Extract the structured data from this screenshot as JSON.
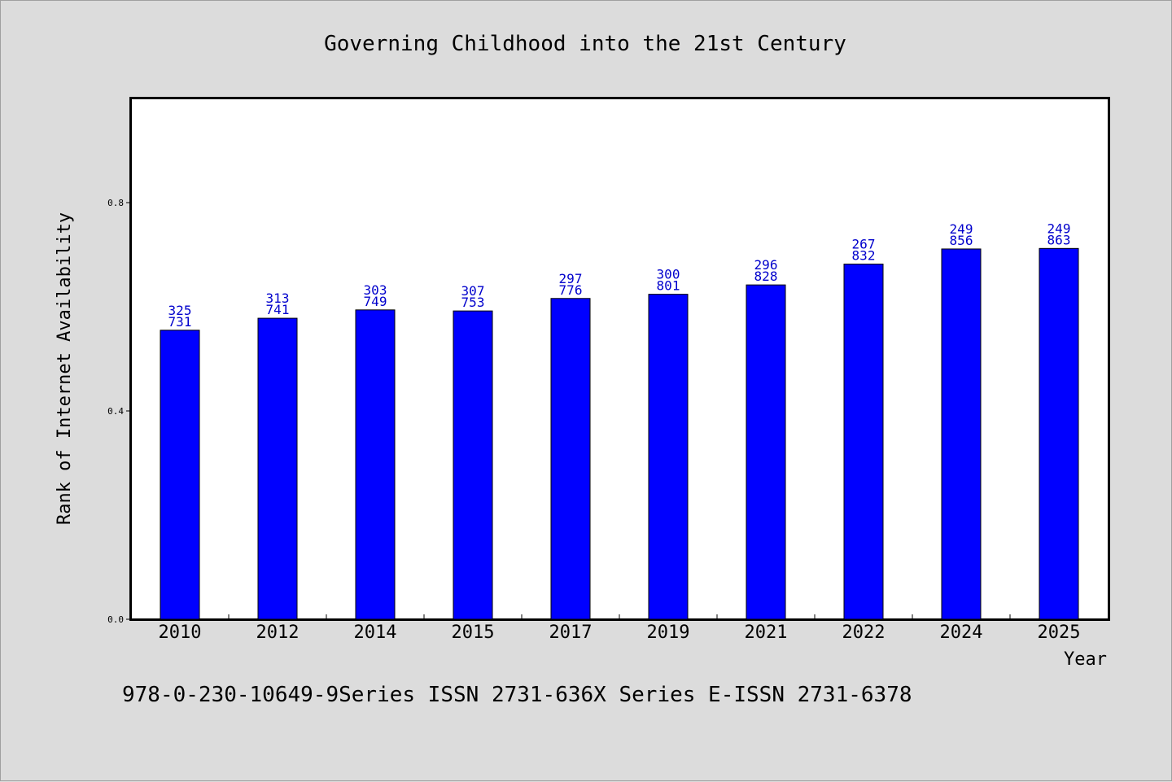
{
  "colors": {
    "background": "#dcdcdc",
    "plot_background": "#ffffff",
    "bar": "#0000ff",
    "data_label": "#0000cc"
  },
  "chart_data": {
    "type": "bar",
    "title": "Governing Childhood into the 21st Century",
    "xlabel": "Year",
    "ylabel": "Rank of Internet Availability",
    "categories": [
      "2010",
      "2012",
      "2014",
      "2015",
      "2017",
      "2019",
      "2021",
      "2022",
      "2024",
      "2025"
    ],
    "values": [
      0.555,
      0.578,
      0.594,
      0.592,
      0.616,
      0.624,
      0.642,
      0.682,
      0.711,
      0.712
    ],
    "labels_top": [
      "325",
      "313",
      "303",
      "307",
      "297",
      "300",
      "296",
      "267",
      "249",
      "249"
    ],
    "labels_bottom": [
      "731",
      "741",
      "749",
      "753",
      "776",
      "801",
      "828",
      "832",
      "856",
      "863"
    ],
    "yticks": [
      "0.0",
      "0.4",
      "0.8"
    ],
    "ylim": [
      0,
      1.0
    ],
    "grid": false,
    "legend": "none"
  },
  "footer": {
    "text": "978-0-230-10649-9Series ISSN 2731-636X Series E-ISSN 2731-6378"
  }
}
